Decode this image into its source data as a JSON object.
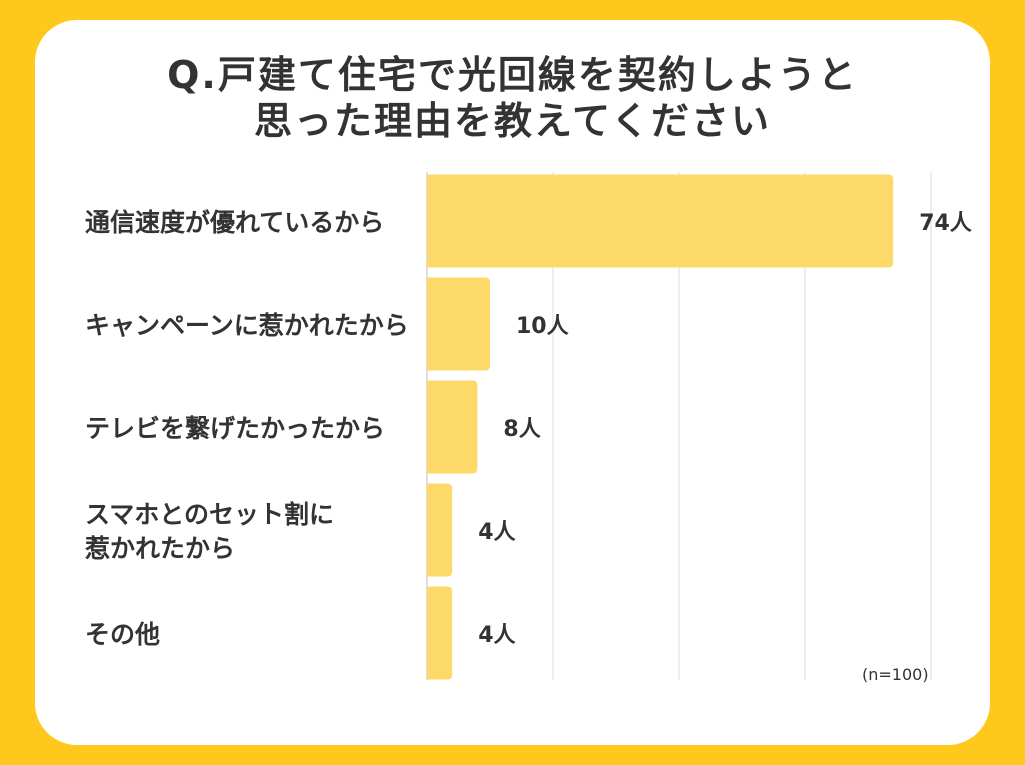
{
  "chart_data": {
    "type": "bar",
    "orientation": "horizontal",
    "title": "Q.戸建て住宅で光回線を契約しようと\n思った理由を教えてください",
    "categories": [
      "通信速度が優れているから",
      "キャンペーンに惹かれたから",
      "テレビを繋げたかったから",
      "スマホとのセット割に\n惹かれたから",
      "その他"
    ],
    "values": [
      74,
      10,
      8,
      4,
      4
    ],
    "value_labels": [
      "74人",
      "10人",
      "8人",
      "4人",
      "4人"
    ],
    "color": "#fdd96a",
    "xlim": [
      0,
      80
    ],
    "xticks": [
      0,
      20,
      40,
      60,
      80
    ],
    "grid": true,
    "annotation": "(n=100)"
  }
}
